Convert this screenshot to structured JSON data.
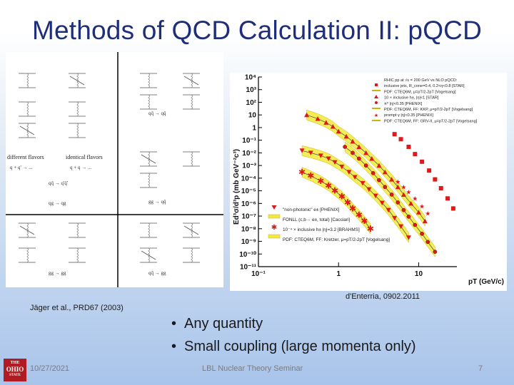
{
  "slide": {
    "title": "Methods of QCD Calculation II: pQCD",
    "citation_left": "Jäger et al., PRD67 (2003)",
    "citation_right": "d'Enterria, 0902.2011",
    "bullets": [
      "Any quantity",
      "Small coupling (large momenta only)"
    ],
    "footer": {
      "date": "10/27/2021",
      "center": "LBL Nuclear Theory Seminar",
      "page": "7"
    },
    "logo_text": "OHIO STATE",
    "colors": {
      "title": "#1f2e79",
      "logo_red": "#b11b22",
      "band": "#f2ea3b",
      "red_marks": "#e01818"
    }
  },
  "diagrams": {
    "label_different_flavors": "different flavors",
    "label_identical_flavors": "identical flavors",
    "processes": [
      "q + q' → ...",
      "q + q → ...",
      "qq̄ → q'q̄'",
      "qq̄ → qq̄",
      "qg → qg",
      "gg → qq̄",
      "gg → gg",
      "qq̄ → gg"
    ]
  },
  "chart_data": {
    "type": "scatter",
    "title": "",
    "ylabel": "Ed³σ/d³p (mb GeV⁻²c³)",
    "xlabel": "pT (GeV/c)",
    "xscale": "log",
    "yscale": "log",
    "xlim": [
      0.1,
      30
    ],
    "ylim": [
      1e-11,
      10000.0
    ],
    "x_ticks": [
      "10⁻¹",
      "1",
      "10"
    ],
    "y_ticks": [
      "10⁴",
      "10³",
      "10²",
      "10",
      "1",
      "10⁻¹",
      "10⁻²",
      "10⁻³",
      "10⁻⁴",
      "10⁻⁵",
      "10⁻⁶",
      "10⁻⁷",
      "10⁻⁸",
      "10⁻⁹",
      "10⁻¹⁰",
      "10⁻¹¹"
    ],
    "legend_top": [
      "RHIC pp at √s = 200 GeV vs NLO pQCD:",
      "inclusive jets, R_cone=0.4, 0.2<η<0.8 [STAR]",
      "PDF: CTEQ6M, μ=pT/2-2pT [Vogelsang]",
      "10 × inclusive h±, |η|<1 [STAR]",
      "π⁰ |η|<0.35 [PHENIX]",
      "PDF: CTEQ6M, FF: KKP, μ=pT/2-2pT [Vogelsang]",
      "prompt γ |η|<0.35 [PHENIX]",
      "PDF: CTEQ6M, FF: GRV-II, μ=pT/2-2pT [Vogelsang]"
    ],
    "legend_bottom": [
      "\"non-photonic\" e± [PHENIX]",
      "FONLL (c,b→ e±, total) [Cacciari]",
      "10⁻⁴ × inclusive h± |η|=3.2 [BRAHMS]",
      "PDF: CTEQ6M, FF: Kretzer, μ=pT/2-2pT [Vogelsang]"
    ],
    "legend_position": "top-right and bottom-right",
    "series": [
      {
        "name": "inclusive jets [STAR]",
        "marker": "square",
        "x": [
          5,
          6,
          7.5,
          9,
          11,
          13.5,
          16,
          19,
          23,
          27
        ],
        "y": [
          0.3,
          0.12,
          0.03,
          0.008,
          0.002,
          0.0004,
          8e-05,
          1.6e-05,
          2.5e-06,
          4e-07
        ]
      },
      {
        "name": "10 × inclusive h± [STAR]",
        "marker": "triangle",
        "x": [
          0.4,
          0.55,
          0.7,
          0.85,
          1,
          1.25,
          1.5,
          1.8,
          2.2,
          2.6,
          3.2,
          3.8,
          4.6,
          5.5,
          6.5,
          8,
          10,
          12
        ],
        "y": [
          10.0,
          5,
          2.5,
          1.2,
          0.5,
          0.2,
          0.08,
          0.03,
          0.01,
          0.0035,
          0.001,
          0.0003,
          8e-05,
          2e-05,
          5e-06,
          1e-06,
          2e-07,
          4e-08
        ]
      },
      {
        "name": "π⁰ [PHENIX]",
        "marker": "circle",
        "x": [
          1.2,
          1.5,
          1.8,
          2.2,
          2.7,
          3.2,
          3.8,
          4.6,
          5.5,
          6.5,
          7.5,
          9,
          11,
          13,
          16
        ],
        "y": [
          0.03,
          0.01,
          0.0035,
          0.001,
          0.00025,
          7e-05,
          2e-05,
          5e-06,
          1.2e-06,
          3e-07,
          9e-08,
          2e-08,
          4e-09,
          9e-10,
          1.5e-10
        ]
      },
      {
        "name": "prompt γ [PHENIX]",
        "marker": "star",
        "x": [
          5.5,
          6.5,
          7.5,
          9,
          11,
          13
        ],
        "y": [
          5e-05,
          2e-05,
          8e-06,
          2.5e-06,
          6e-07,
          1.6e-07
        ]
      },
      {
        "name": "\"non-photonic\" e± [PHENIX]",
        "marker": "down-triangle",
        "x": [
          0.35,
          0.45,
          0.6,
          0.75,
          0.9,
          1.1,
          1.35,
          1.6,
          2,
          2.4,
          2.9,
          3.5,
          4.2,
          5,
          6,
          7.5
        ],
        "y": [
          0.015,
          0.01,
          0.006,
          0.0035,
          0.0018,
          0.0008,
          0.0003,
          0.00012,
          4e-05,
          1.3e-05,
          4e-06,
          1.1e-06,
          3e-07,
          7e-08,
          1.5e-08,
          2e-09
        ]
      },
      {
        "name": "10⁻⁴ × inclusive h± |η|=3.2 [BRAHMS]",
        "marker": "asterisk",
        "x": [
          0.35,
          0.45,
          0.6,
          0.75,
          0.9,
          1.1,
          1.3,
          1.5,
          1.8,
          2.1,
          2.5
        ],
        "y": [
          0.0003,
          0.00015,
          6e-05,
          2.5e-05,
          1e-05,
          3.5e-06,
          1.2e-06,
          4e-07,
          1.2e-07,
          4e-08,
          1e-08
        ]
      }
    ]
  }
}
